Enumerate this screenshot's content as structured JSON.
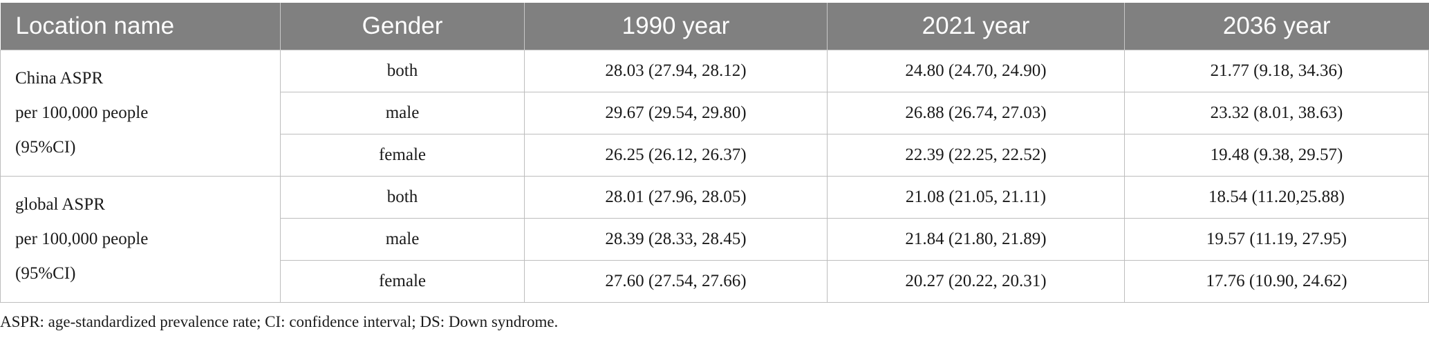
{
  "table": {
    "headers": [
      "Location name",
      "Gender",
      "1990 year",
      "2021 year",
      "2036 year"
    ],
    "groups": [
      {
        "location_lines": [
          "China ASPR",
          "per 100,000 people",
          "(95%CI)"
        ],
        "rows": [
          {
            "gender": "both",
            "y1990": "28.03 (27.94, 28.12)",
            "y2021": "24.80 (24.70, 24.90)",
            "y2036": "21.77 (9.18, 34.36)"
          },
          {
            "gender": "male",
            "y1990": "29.67 (29.54, 29.80)",
            "y2021": "26.88 (26.74, 27.03)",
            "y2036": "23.32 (8.01, 38.63)"
          },
          {
            "gender": "female",
            "y1990": "26.25 (26.12, 26.37)",
            "y2021": "22.39 (22.25, 22.52)",
            "y2036": "19.48 (9.38, 29.57)"
          }
        ]
      },
      {
        "location_lines": [
          "global ASPR",
          "per 100,000 people",
          "(95%CI)"
        ],
        "rows": [
          {
            "gender": "both",
            "y1990": "28.01 (27.96, 28.05)",
            "y2021": "21.08 (21.05, 21.11)",
            "y2036": "18.54 (11.20,25.88)"
          },
          {
            "gender": "male",
            "y1990": "28.39 (28.33, 28.45)",
            "y2021": "21.84 (21.80, 21.89)",
            "y2036": "19.57 (11.19, 27.95)"
          },
          {
            "gender": "female",
            "y1990": "27.60 (27.54, 27.66)",
            "y2021": "20.27 (20.22, 20.31)",
            "y2036": "17.76 (10.90, 24.62)"
          }
        ]
      }
    ]
  },
  "footnote": "ASPR: age-standardized prevalence rate; CI: confidence interval; DS: Down syndrome.",
  "colors": {
    "header_bg": "#808080",
    "header_text": "#ffffff",
    "border": "#bdbdbd"
  }
}
